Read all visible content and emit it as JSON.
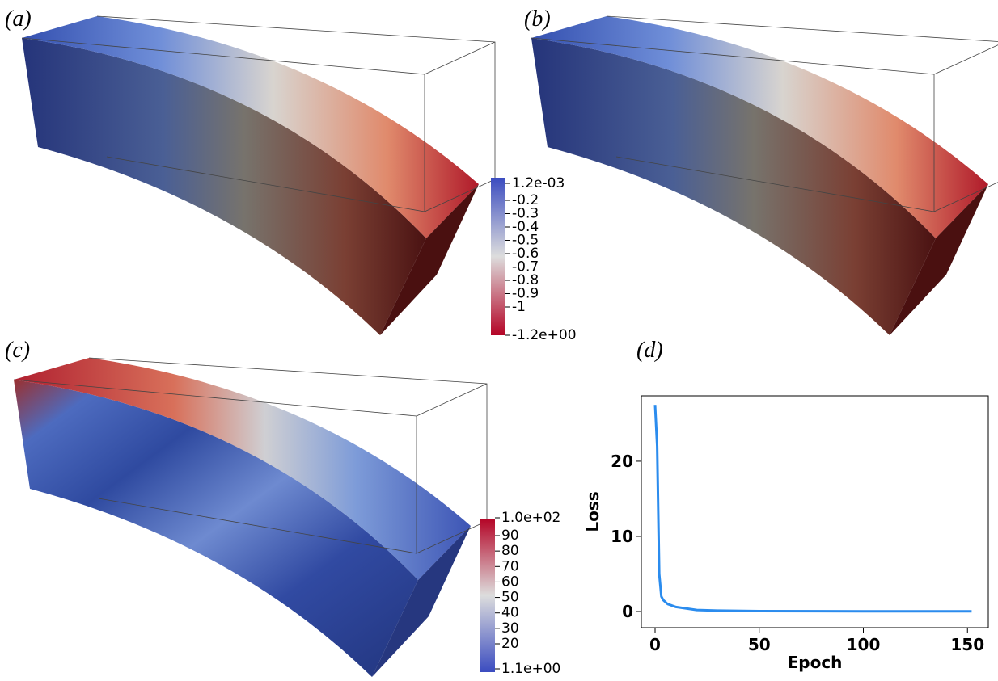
{
  "panels": {
    "labels": [
      "(a)",
      "(b)",
      "(c)",
      "(d)"
    ]
  },
  "colorbars": [
    {
      "ticks": [
        "1.2e-03",
        "-0.2",
        "-0.3",
        "-0.4",
        "-0.5",
        "-0.6",
        "-0.7",
        "-0.8",
        "-0.9",
        "-1",
        "-1.2e+00"
      ]
    },
    {
      "ticks": [
        "1.0e+02",
        "90",
        "80",
        "70",
        "60",
        "50",
        "40",
        "30",
        "20",
        "1.1e+00"
      ]
    }
  ],
  "chart_data": {
    "type": "line",
    "xlabel": "Epoch",
    "ylabel": "Loss",
    "x": [
      0,
      1,
      2,
      3,
      4,
      6,
      8,
      10,
      15,
      20,
      30,
      50,
      100,
      152
    ],
    "values": [
      27.5,
      22,
      5,
      2,
      1.5,
      1.0,
      0.8,
      0.6,
      0.4,
      0.2,
      0.12,
      0.06,
      0.03,
      0.02
    ],
    "color": "#2b8cee",
    "xlim": [
      -6.6,
      160
    ],
    "ylim": [
      -2.15,
      28.7
    ],
    "xticks": [
      0,
      50,
      100,
      150
    ],
    "yticks": [
      0,
      10,
      20
    ]
  }
}
